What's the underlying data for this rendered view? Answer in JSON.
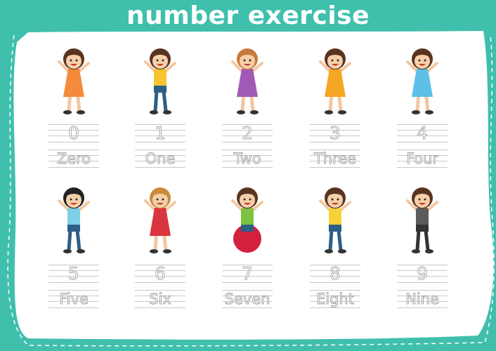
{
  "title": "number exercise",
  "colors": {
    "background": "#40bfad",
    "panel": "#ffffff",
    "title": "#ffffff",
    "trace": "#8a8a8a"
  },
  "items": [
    {
      "number": "0",
      "word": "Zero",
      "kid": {
        "hair": "#5a3420",
        "top": "#f58a3c",
        "dress": true,
        "bottom": "#f58a3c"
      }
    },
    {
      "number": "1",
      "word": "One",
      "kid": {
        "hair": "#5a3420",
        "top": "#f6c530",
        "dress": false,
        "bottom": "#2e5f86"
      }
    },
    {
      "number": "2",
      "word": "Two",
      "kid": {
        "hair": "#c87a3a",
        "top": "#a05ab5",
        "dress": true,
        "bottom": "#a05ab5"
      }
    },
    {
      "number": "3",
      "word": "Three",
      "kid": {
        "hair": "#5a3420",
        "top": "#f5a623",
        "dress": true,
        "bottom": "#f5a623"
      }
    },
    {
      "number": "4",
      "word": "Four",
      "kid": {
        "hair": "#5a3420",
        "top": "#5cc0e8",
        "dress": true,
        "bottom": "#5cc0e8"
      }
    },
    {
      "number": "5",
      "word": "Five",
      "kid": {
        "hair": "#222222",
        "top": "#7fd0e6",
        "dress": false,
        "bottom": "#2e5f86"
      }
    },
    {
      "number": "6",
      "word": "Six",
      "kid": {
        "hair": "#c98a3a",
        "top": "#d9343f",
        "dress": true,
        "bottom": "#2b2b4a"
      }
    },
    {
      "number": "7",
      "word": "Seven",
      "kid": {
        "hair": "#5a3420",
        "top": "#7dc243",
        "dress": false,
        "bottom": "#2e5f86",
        "ball": "#d3203f"
      }
    },
    {
      "number": "8",
      "word": "Eight",
      "kid": {
        "hair": "#5a3420",
        "top": "#f6d23a",
        "dress": false,
        "bottom": "#2e5f86"
      }
    },
    {
      "number": "9",
      "word": "Nine",
      "kid": {
        "hair": "#5a3420",
        "top": "#5b5b5b",
        "dress": false,
        "bottom": "#333333"
      }
    }
  ]
}
